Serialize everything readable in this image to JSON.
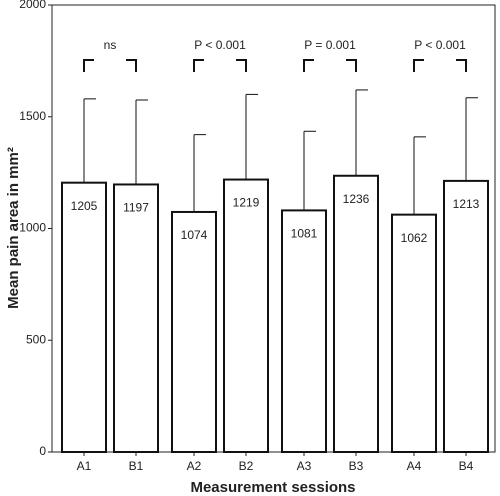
{
  "chart_data": {
    "type": "bar",
    "x_label": "Measurement sessions",
    "y_label": "Mean pain area in mm²",
    "categories": [
      "A1",
      "B1",
      "A2",
      "B2",
      "A3",
      "B3",
      "A4",
      "B4"
    ],
    "values": [
      1205,
      1197,
      1074,
      1219,
      1081,
      1236,
      1062,
      1213
    ],
    "errors": [
      375,
      378,
      346,
      381,
      354,
      384,
      348,
      372
    ],
    "annotations": [
      "ns",
      "P < 0.001",
      "P = 0.001",
      "P < 0.001"
    ],
    "color": "#ffffff",
    "edge_color": "#111111",
    "ylim": [
      0,
      2000
    ],
    "yticks": [
      0,
      500,
      1000,
      1500,
      2000
    ],
    "grid": false
  }
}
